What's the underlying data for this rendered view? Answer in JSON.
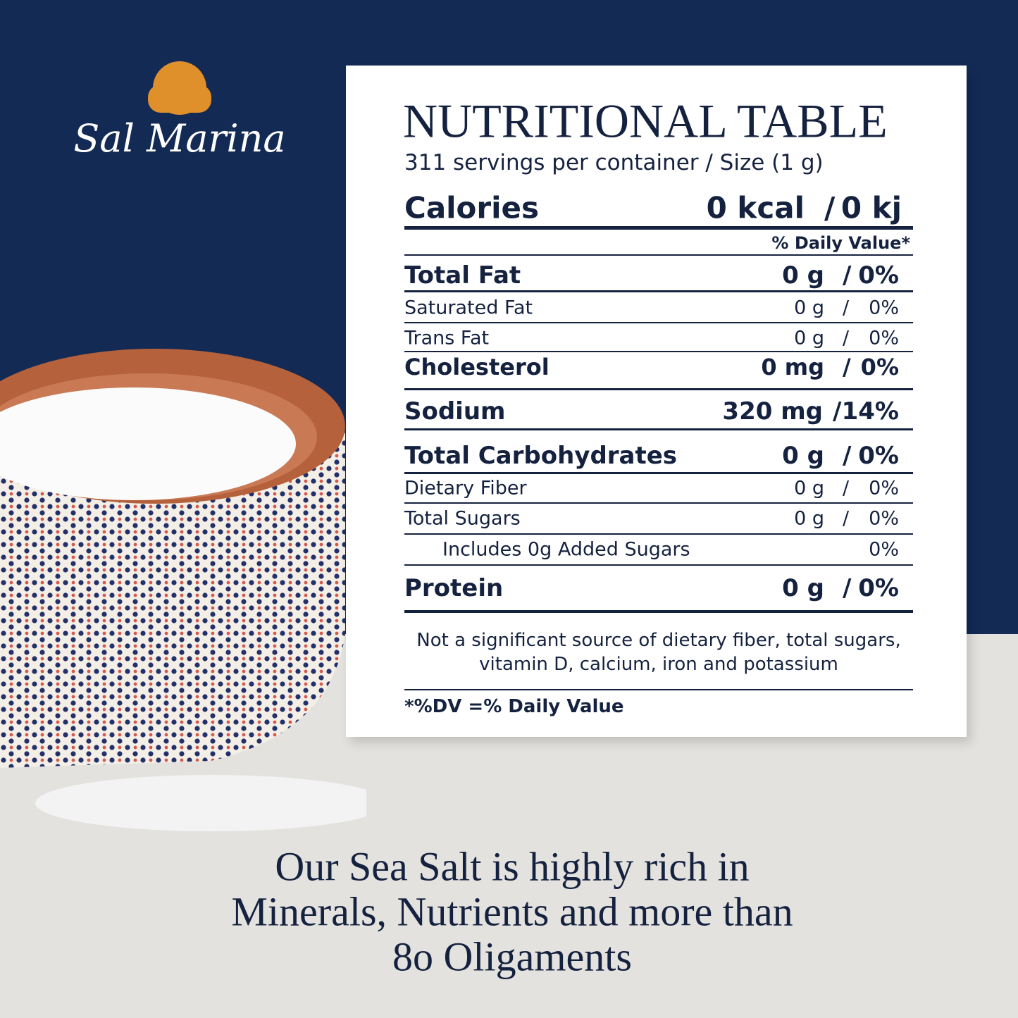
{
  "brand": "Sal Marina",
  "table": {
    "title": "NUTRITIONAL TABLE",
    "servings": "311 servings per container / Size (1 g)",
    "separator": "/",
    "calories": {
      "label": "Calories",
      "kcal": "0 kcal",
      "kj": "0 kj"
    },
    "daily_value_header": "% Daily Value*",
    "rows": [
      {
        "label": "Total Fat",
        "amount": "0 g",
        "dv": "0%"
      },
      {
        "label": "Saturated Fat",
        "amount": "0 g",
        "dv": "0%"
      },
      {
        "label": "Trans Fat",
        "amount": "0 g",
        "dv": "0%"
      },
      {
        "label": "Cholesterol",
        "amount": "0 mg",
        "dv": "0%"
      },
      {
        "label": "Sodium",
        "amount": "320 mg",
        "dv": "14%"
      },
      {
        "label": "Total Carbohydrates",
        "amount": "0 g",
        "dv": "0%"
      },
      {
        "label": "Dietary Fiber",
        "amount": "0 g",
        "dv": "0%"
      },
      {
        "label": "Total Sugars",
        "amount": "0 g",
        "dv": "0%"
      },
      {
        "label": "Includes 0g Added Sugars",
        "dv": "0%"
      },
      {
        "label": "Protein",
        "amount": "0 g",
        "dv": "0%"
      }
    ],
    "note": [
      "Not a significant source of dietary fiber, total sugars,",
      "vitamin D, calcium, iron and potassium"
    ],
    "footnote": "*%DV =% Daily Value"
  },
  "tagline": [
    "Our Sea Salt is highly rich in",
    "Minerals, Nutrients and more than",
    "8o Oligaments"
  ]
}
